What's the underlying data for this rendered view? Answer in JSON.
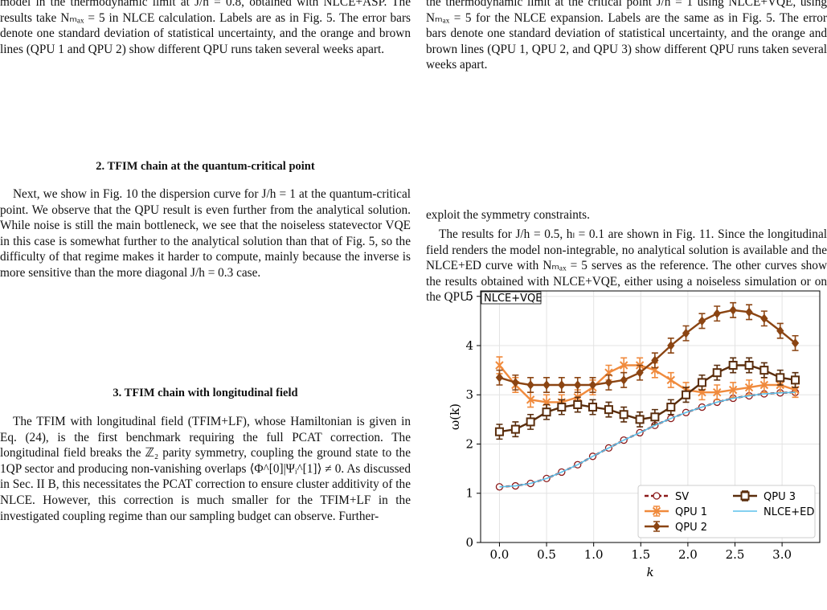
{
  "left": {
    "caption": "model in the thermodynamic limit at J/h = 0.8, obtained with NLCE+ASP. The results take Nₘₐₓ = 5 in NLCE calculation. Labels are as in Fig. 5. The error bars denote one standard deviation of statistical uncertainty, and the orange and brown lines (QPU 1 and QPU 2) show different QPU runs taken several weeks apart.",
    "heading_1": "2.   TFIM chain at the quantum-critical point",
    "paragraph_1": "Next, we show in Fig. 10 the dispersion curve for J/h = 1 at the quantum-critical point. We observe that the QPU result is even further from the analytical solution. While noise is still the main bottleneck, we see that the noiseless statevector VQE in this case is somewhat further to the analytical solution than that of Fig. 5, so the difficulty of that regime makes it harder to compute, mainly because the inverse is more sensitive than the more diagonal J/h = 0.3 case.",
    "heading_2": "3.   TFIM chain with longitudinal field",
    "paragraph_2": "The TFIM with longitudinal field (TFIM+LF), whose Hamiltonian is given in Eq. (24), is the first benchmark requiring the full PCAT correction. The longitudinal field breaks the ℤ₂ parity symmetry, coupling the ground state to the 1QP sector and producing non-vanishing overlaps ⟨Φ^[0]|Ψᵢ^[1]⟩ ≠ 0. As discussed in Sec. II B, this necessitates the PCAT correction to ensure cluster additivity of the NLCE. However, this correction is much smaller for the TFIM+LF in the investigated coupling regime than our sampling budget can observe. Further-"
  },
  "right": {
    "caption": "the thermodynamic limit at the critical point J/h = 1 using NLCE+VQE, using Nₘₐₓ = 5 for the NLCE expansion. Labels are the same as in Fig. 5. The error bars denote one standard deviation of statistical uncertainty, and the orange and brown lines (QPU 1, QPU 2, and QPU 3) show different QPU runs taken several weeks apart.",
    "paragraph_1": "exploit the symmetry constraints.",
    "paragraph_2": "The results for J/h = 0.5, hₗ = 0.1 are shown in Fig. 11. Since the longitudinal field renders the model non-integrable, no analytical solution is available and the NLCE+ED curve with Nₘₐₓ = 5 serves as the reference. The other curves show the results obtained with NLCE+VQE, either using a noiseless simulation or on the QPU."
  },
  "chart_data": {
    "type": "line",
    "annotation": "NLCE+VQE",
    "x_label": "k",
    "y_label": "ω(k)",
    "x": [
      0,
      0.17,
      0.33,
      0.5,
      0.66,
      0.83,
      0.99,
      1.16,
      1.32,
      1.49,
      1.65,
      1.82,
      1.98,
      2.15,
      2.31,
      2.48,
      2.65,
      2.81,
      2.98,
      3.14
    ],
    "xlim": [
      -0.2,
      3.4
    ],
    "ylim": [
      0,
      5.11
    ],
    "xticks": [
      {
        "value": 0,
        "label": "0.0"
      },
      {
        "value": 0.5,
        "label": "0.5"
      },
      {
        "value": 1,
        "label": "1.0"
      },
      {
        "value": 1.5,
        "label": "1.5"
      },
      {
        "value": 2,
        "label": "2.0"
      },
      {
        "value": 2.5,
        "label": "2.5"
      },
      {
        "value": 3,
        "label": "3.0"
      }
    ],
    "yticks": [
      0,
      1,
      2,
      3,
      4,
      5
    ],
    "grid": true,
    "legend": "lower right",
    "series": [
      {
        "name": "SV",
        "color": "#8b1a1a",
        "marker": "circle",
        "linestyle": "dashed",
        "values": [
          1.13,
          1.15,
          1.2,
          1.3,
          1.43,
          1.58,
          1.75,
          1.92,
          2.08,
          2.23,
          2.38,
          2.52,
          2.64,
          2.75,
          2.85,
          2.93,
          2.98,
          3.02,
          3.04,
          3.05
        ]
      },
      {
        "name": "QPU 1",
        "color": "#f08a3c",
        "marker": "x",
        "linestyle": "solid",
        "values": [
          3.6,
          3.2,
          2.9,
          2.85,
          2.85,
          2.95,
          3.15,
          3.45,
          3.6,
          3.6,
          3.5,
          3.3,
          3.1,
          3.05,
          3.05,
          3.1,
          3.15,
          3.2,
          3.2,
          3.1
        ],
        "errors": [
          0.17,
          0.15,
          0.15,
          0.15,
          0.15,
          0.15,
          0.15,
          0.15,
          0.15,
          0.15,
          0.15,
          0.15,
          0.15,
          0.15,
          0.15,
          0.15,
          0.15,
          0.15,
          0.15,
          0.15
        ]
      },
      {
        "name": "QPU 2",
        "color": "#8b4513",
        "marker": "diamond",
        "linestyle": "solid",
        "values": [
          3.35,
          3.25,
          3.2,
          3.2,
          3.2,
          3.2,
          3.2,
          3.25,
          3.3,
          3.45,
          3.7,
          4.0,
          4.25,
          4.5,
          4.65,
          4.72,
          4.68,
          4.55,
          4.3,
          4.05
        ],
        "errors": [
          0.15,
          0.15,
          0.15,
          0.15,
          0.15,
          0.15,
          0.15,
          0.15,
          0.15,
          0.15,
          0.15,
          0.15,
          0.15,
          0.15,
          0.15,
          0.15,
          0.15,
          0.15,
          0.15,
          0.15
        ]
      },
      {
        "name": "QPU 3",
        "color": "#5a2d0c",
        "marker": "square",
        "linestyle": "solid",
        "values": [
          2.25,
          2.3,
          2.45,
          2.65,
          2.75,
          2.8,
          2.75,
          2.7,
          2.6,
          2.5,
          2.55,
          2.75,
          3.0,
          3.25,
          3.45,
          3.6,
          3.6,
          3.5,
          3.35,
          3.3
        ],
        "errors": [
          0.15,
          0.15,
          0.15,
          0.15,
          0.15,
          0.15,
          0.15,
          0.15,
          0.15,
          0.15,
          0.15,
          0.15,
          0.15,
          0.15,
          0.15,
          0.15,
          0.15,
          0.15,
          0.15,
          0.15
        ]
      },
      {
        "name": "NLCE+ED",
        "color": "#5bc0eb",
        "marker": "none",
        "linestyle": "solid",
        "values": [
          1.13,
          1.15,
          1.2,
          1.3,
          1.43,
          1.58,
          1.75,
          1.92,
          2.08,
          2.23,
          2.38,
          2.52,
          2.64,
          2.75,
          2.85,
          2.93,
          2.98,
          3.02,
          3.04,
          3.05
        ]
      }
    ]
  }
}
